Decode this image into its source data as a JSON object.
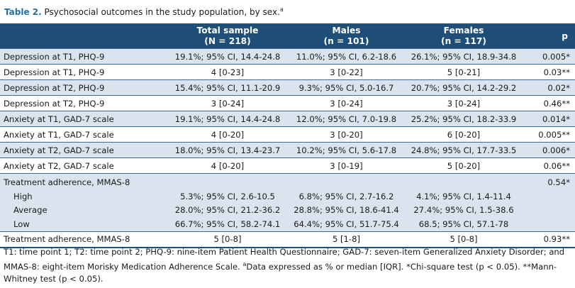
{
  "caption": {
    "label": "Table 2.",
    "text": " Psychosocial outcomes in the study population, by sex.",
    "sup": "a"
  },
  "header": {
    "total": {
      "line1": "Total sample",
      "line2": "(N = 218)"
    },
    "males": {
      "line1": "Males",
      "line2": "(n = 101)"
    },
    "females": {
      "line1": "Females",
      "line2": "(n = 117)"
    },
    "p": "p"
  },
  "rows": [
    {
      "label": "Depression at T1, PHQ-9",
      "total": "19.1%; 95% CI, 14.4-24.8",
      "males": "11.0%; 95% CI, 6.2-18.6",
      "females": "26.1%; 95% CI, 18.9-34.8",
      "p": "0.005*"
    },
    {
      "label": "Depression at T1, PHQ-9",
      "total": "4 [0-23]",
      "males": "3 [0-22]",
      "females": "5 [0-21]",
      "p": "0.03**"
    },
    {
      "label": "Depression at T2, PHQ-9",
      "total": "15.4%; 95% CI, 11.1-20.9",
      "males": "9.3%; 95% CI, 5.0-16.7",
      "females": "20.7%; 95% CI, 14.2-29.2",
      "p": "0.02*"
    },
    {
      "label": "Depression at T2, PHQ-9",
      "total": "3 [0-24]",
      "males": "3 [0-24]",
      "females": "3 [0-24]",
      "p": "0.46**"
    },
    {
      "label": "Anxiety at T1, GAD-7 scale",
      "total": "19.1%; 95% CI, 14.4-24.8",
      "males": "12.0%; 95% CI, 7.0-19.8",
      "females": "25.2%; 95% CI, 18.2-33.9",
      "p": "0.014*"
    },
    {
      "label": "Anxiety at T1, GAD-7 scale",
      "total": "4 [0-20]",
      "males": "3 [0-20]",
      "females": "6 [0-20]",
      "p": "0.005**"
    },
    {
      "label": "Anxiety at T2, GAD-7 scale",
      "total": "18.0%; 95% CI, 13.4-23.7",
      "males": "10.2%; 95% CI, 5.6-17.8",
      "females": "24.8%; 95% CI, 17.7-33.5",
      "p": "0.006*"
    },
    {
      "label": "Anxiety at T2, GAD-7 scale",
      "total": "4 [0-20]",
      "males": "3 [0-19]",
      "females": "5 [0-20]",
      "p": "0.06**"
    }
  ],
  "adherence": {
    "label": "Treatment adherence, MMAS-8",
    "p": "0.54*",
    "levels": [
      {
        "label": "High",
        "total": "5.3%; 95% CI, 2.6-10.5",
        "males": "6.8%; 95% CI, 2.7-16.2",
        "females": "4.1%; 95% CI, 1.4-11.4"
      },
      {
        "label": "Average",
        "total": "28.0%; 95% CI, 21.2-36.2",
        "males": "28.8%; 95% CI, 18.6-41.4",
        "females": "27.4%; 95% CI, 1.5-38.6"
      },
      {
        "label": "Low",
        "total": "66.7%; 95% CI, 58.2-74.1",
        "males": "64.4%; 95% CI, 51.7-75.4",
        "females": "68.5; 95% CI, 57.1-78"
      }
    ]
  },
  "last_row": {
    "label": "Treatment adherence, MMAS-8",
    "total": "5 [0-8]",
    "males": "5 [1-8]",
    "females": "5 [0-8]",
    "p": "0.93**"
  },
  "footnote": {
    "part1": "T1: time point 1; T2: time point 2; PHQ-9: nine-item Patient Health Questionnaire; GAD-7: seven-item Generalized Anxiety Disorder; and MMAS-8: eight-item Morisky Medication Adherence Scale. ",
    "sup": "a",
    "part2": "Data expressed as % or median [IQR]. *Chi-square test (p < 0.05). **Mann-Whitney test (p < 0.05)."
  },
  "colors": {
    "header_bg": "#1f4e79",
    "stripe": "#d9e4ef",
    "caption_label": "#1f6fa8"
  }
}
